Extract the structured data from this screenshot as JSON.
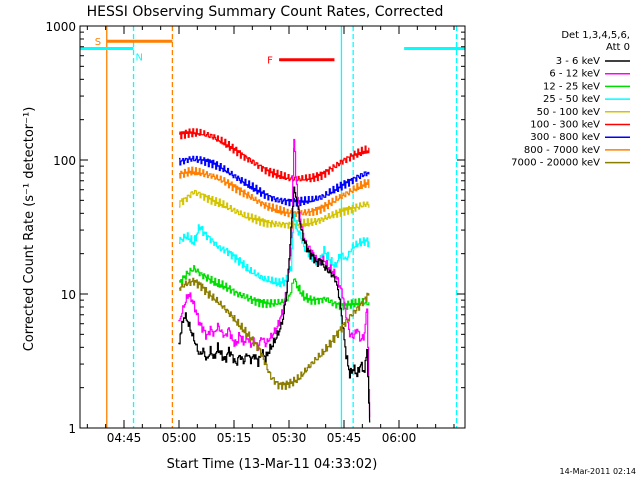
{
  "chart_data": {
    "type": "line",
    "title": "HESSI Observing Summary Count Rates, Corrected",
    "xlabel": "Start Time (13-Mar-11 04:33:02)",
    "ylabel": "Corrected Count Rate (s⁻¹ detector⁻¹)",
    "yscale": "log",
    "ylim": [
      1,
      1000
    ],
    "xlim_minutes_after_0433": [
      0,
      105
    ],
    "x_ticks": [
      {
        "label": "04:45",
        "minutes": 12
      },
      {
        "label": "05:00",
        "minutes": 27
      },
      {
        "label": "05:15",
        "minutes": 42
      },
      {
        "label": "05:30",
        "minutes": 57
      },
      {
        "label": "05:45",
        "minutes": 72
      },
      {
        "label": "06:00",
        "minutes": 87
      }
    ],
    "y_ticks": [
      {
        "label": "1",
        "value": 1
      },
      {
        "label": "10",
        "value": 10
      },
      {
        "label": "100",
        "value": 100
      },
      {
        "label": "1000",
        "value": 1000
      }
    ],
    "timestamp": "14-Mar-2011 02:14",
    "legend": {
      "placement": "right",
      "title_lines": [
        "Det 1,3,4,5,6,",
        "Att 0"
      ],
      "entries": [
        {
          "label": "3 - 6 keV",
          "color": "#000000"
        },
        {
          "label": "6 - 12 keV",
          "color": "#ff00ff"
        },
        {
          "label": "12 - 25 keV",
          "color": "#00dd00"
        },
        {
          "label": "25 - 50 keV",
          "color": "#00ffff"
        },
        {
          "label": "50 - 100 keV",
          "color": "#d4c400"
        },
        {
          "label": "100 - 300 keV",
          "color": "#ff0000"
        },
        {
          "label": "300 - 800 keV",
          "color": "#0000ff"
        },
        {
          "label": "800 - 7000 keV",
          "color": "#ff7f00"
        },
        {
          "label": "7000 - 20000 keV",
          "color": "#8b7d00"
        }
      ]
    },
    "flag_bars": [
      {
        "label": "S",
        "color": "#ff7f00",
        "start_min": 7.3,
        "end_min": 25.2,
        "level": 770
      },
      {
        "label": "N",
        "color": "#00ffff",
        "start_min": 0,
        "end_min": 14.6,
        "level": 680
      },
      {
        "label": "N",
        "color": "#00ffff",
        "start_min": 88.4,
        "end_min": 105,
        "level": 680
      },
      {
        "label": "F",
        "color": "#ff0000",
        "start_min": 54.3,
        "end_min": 69.4,
        "level": 560
      }
    ],
    "vertical_markers": [
      {
        "minutes": 7.3,
        "color": "#ff7f00",
        "style": "solid"
      },
      {
        "minutes": 14.6,
        "color": "#00ffff",
        "style": "dashed"
      },
      {
        "minutes": 25.2,
        "color": "#ff7f00",
        "style": "dashed"
      },
      {
        "minutes": 71.3,
        "color": "#00ffff",
        "style": "solid"
      },
      {
        "minutes": 74.5,
        "color": "#00ffff",
        "style": "dashed"
      },
      {
        "minutes": 102.7,
        "color": "#00ffff",
        "style": "dashed"
      }
    ],
    "series": [
      {
        "name": "100 - 300 keV",
        "color": "#ff0000",
        "points": [
          [
            27,
            155
          ],
          [
            30,
            160
          ],
          [
            33,
            158
          ],
          [
            36,
            150
          ],
          [
            39,
            135
          ],
          [
            42,
            120
          ],
          [
            45,
            105
          ],
          [
            48,
            93
          ],
          [
            51,
            83
          ],
          [
            54,
            77
          ],
          [
            57,
            73
          ],
          [
            60,
            72
          ],
          [
            63,
            73
          ],
          [
            66,
            78
          ],
          [
            69,
            88
          ],
          [
            72,
            100
          ],
          [
            75,
            110
          ],
          [
            78,
            118
          ],
          [
            78.8,
            115
          ]
        ]
      },
      {
        "name": "300 - 800 keV",
        "color": "#0000ff",
        "points": [
          [
            27,
            97
          ],
          [
            30,
            102
          ],
          [
            33,
            100
          ],
          [
            36,
            95
          ],
          [
            39,
            86
          ],
          [
            42,
            76
          ],
          [
            45,
            67
          ],
          [
            48,
            60
          ],
          [
            51,
            54
          ],
          [
            54,
            50
          ],
          [
            57,
            49
          ],
          [
            60,
            49
          ],
          [
            63,
            50
          ],
          [
            66,
            53
          ],
          [
            69,
            59
          ],
          [
            72,
            66
          ],
          [
            75,
            73
          ],
          [
            78,
            80
          ],
          [
            78.8,
            78
          ]
        ]
      },
      {
        "name": "800 - 7000 keV",
        "color": "#ff7f00",
        "points": [
          [
            27,
            78
          ],
          [
            30,
            82
          ],
          [
            33,
            80
          ],
          [
            36,
            76
          ],
          [
            39,
            70
          ],
          [
            42,
            63
          ],
          [
            45,
            56
          ],
          [
            48,
            50
          ],
          [
            51,
            45
          ],
          [
            54,
            42
          ],
          [
            57,
            40
          ],
          [
            60,
            40
          ],
          [
            63,
            41
          ],
          [
            66,
            44
          ],
          [
            69,
            49
          ],
          [
            72,
            55
          ],
          [
            75,
            61
          ],
          [
            78,
            67
          ],
          [
            78.8,
            66
          ]
        ]
      },
      {
        "name": "50 - 100 keV",
        "color": "#d4c400",
        "points": [
          [
            27,
            48
          ],
          [
            29,
            52
          ],
          [
            31,
            58
          ],
          [
            33,
            55
          ],
          [
            36,
            50
          ],
          [
            39,
            46
          ],
          [
            42,
            42
          ],
          [
            45,
            38
          ],
          [
            48,
            36
          ],
          [
            51,
            34
          ],
          [
            54,
            33
          ],
          [
            57,
            33
          ],
          [
            60,
            33
          ],
          [
            63,
            34
          ],
          [
            66,
            36
          ],
          [
            69,
            39
          ],
          [
            72,
            42
          ],
          [
            75,
            44
          ],
          [
            78,
            47
          ],
          [
            78.8,
            46
          ]
        ]
      },
      {
        "name": "25 - 50 keV",
        "color": "#00ffff",
        "points": [
          [
            27,
            25
          ],
          [
            29,
            27
          ],
          [
            31,
            24
          ],
          [
            32.5,
            32
          ],
          [
            34,
            28
          ],
          [
            36,
            25
          ],
          [
            38,
            22
          ],
          [
            40,
            21
          ],
          [
            42,
            19
          ],
          [
            44,
            17
          ],
          [
            46,
            15
          ],
          [
            48,
            14
          ],
          [
            50,
            13
          ],
          [
            52,
            12.5
          ],
          [
            54,
            12
          ],
          [
            56,
            12.5
          ],
          [
            57.5,
            16
          ],
          [
            58.3,
            40
          ],
          [
            59,
            30
          ],
          [
            60,
            28
          ],
          [
            61,
            22
          ],
          [
            63,
            19
          ],
          [
            65,
            17
          ],
          [
            66.5,
            21
          ],
          [
            68,
            18
          ],
          [
            69.5,
            16
          ],
          [
            71,
            20
          ],
          [
            72.5,
            18
          ],
          [
            74,
            22
          ],
          [
            76,
            24
          ],
          [
            78,
            25
          ],
          [
            78.8,
            24
          ]
        ]
      },
      {
        "name": "12 - 25 keV",
        "color": "#00dd00",
        "points": [
          [
            27,
            12
          ],
          [
            29,
            14
          ],
          [
            31,
            15.5
          ],
          [
            33,
            14
          ],
          [
            35,
            13
          ],
          [
            37,
            12
          ],
          [
            39,
            11.5
          ],
          [
            41,
            10.8
          ],
          [
            43,
            10
          ],
          [
            45,
            9.5
          ],
          [
            47,
            9
          ],
          [
            49,
            8.7
          ],
          [
            51,
            8.5
          ],
          [
            53,
            8.5
          ],
          [
            55,
            8.7
          ],
          [
            57,
            9.5
          ],
          [
            58.3,
            13
          ],
          [
            59.5,
            11
          ],
          [
            61,
            9.5
          ],
          [
            63,
            9
          ],
          [
            65,
            9
          ],
          [
            67,
            9.2
          ],
          [
            69,
            8.5
          ],
          [
            71,
            8.2
          ],
          [
            73,
            8.3
          ],
          [
            75,
            8.5
          ],
          [
            77,
            8.7
          ],
          [
            78.8,
            8.5
          ]
        ]
      },
      {
        "name": "6 - 12 keV",
        "color": "#ff00ff",
        "points": [
          [
            26.8,
            6
          ],
          [
            27.5,
            7
          ],
          [
            28.5,
            8.5
          ],
          [
            29.5,
            10
          ],
          [
            30.5,
            9
          ],
          [
            31.5,
            7.5
          ],
          [
            32.5,
            6
          ],
          [
            33.5,
            5.5
          ],
          [
            34.5,
            4.8
          ],
          [
            35.5,
            5.5
          ],
          [
            36.5,
            5
          ],
          [
            37.5,
            5.8
          ],
          [
            38.5,
            5.2
          ],
          [
            39.5,
            4.8
          ],
          [
            40.5,
            5.5
          ],
          [
            41.5,
            4.5
          ],
          [
            42.5,
            4.2
          ],
          [
            43.5,
            5
          ],
          [
            44.5,
            4.3
          ],
          [
            45.5,
            4.8
          ],
          [
            46.5,
            4.2
          ],
          [
            47.5,
            4.5
          ],
          [
            48.5,
            4
          ],
          [
            49.5,
            4.8
          ],
          [
            50.5,
            4.2
          ],
          [
            51.5,
            4.6
          ],
          [
            52.5,
            5
          ],
          [
            53.5,
            5.5
          ],
          [
            54.5,
            6.5
          ],
          [
            55.5,
            8
          ],
          [
            56.5,
            12
          ],
          [
            57.5,
            25
          ],
          [
            58.3,
            145
          ],
          [
            58.8,
            80
          ],
          [
            59.5,
            45
          ],
          [
            60.5,
            30
          ],
          [
            61.5,
            24
          ],
          [
            62.5,
            22
          ],
          [
            63.5,
            20
          ],
          [
            64.5,
            18
          ],
          [
            65.5,
            17
          ],
          [
            66.5,
            18
          ],
          [
            67.5,
            16
          ],
          [
            68.5,
            15
          ],
          [
            69.5,
            14
          ],
          [
            70.5,
            12
          ],
          [
            71.5,
            10
          ],
          [
            72.5,
            7
          ],
          [
            73.5,
            5
          ],
          [
            74.5,
            4.8
          ],
          [
            75.5,
            5.5
          ],
          [
            76.5,
            4.5
          ],
          [
            77.5,
            5
          ],
          [
            78.2,
            8
          ],
          [
            78.7,
            2
          ],
          [
            79,
            1.2
          ]
        ]
      },
      {
        "name": "3 - 6 keV",
        "color": "#000000",
        "points": [
          [
            26.8,
            4
          ],
          [
            27.5,
            5.5
          ],
          [
            28.5,
            7
          ],
          [
            29.5,
            6
          ],
          [
            30.5,
            5
          ],
          [
            31.5,
            4.2
          ],
          [
            32.5,
            3.5
          ],
          [
            33.5,
            3.8
          ],
          [
            34.5,
            3.2
          ],
          [
            35.5,
            3.8
          ],
          [
            36.5,
            3.3
          ],
          [
            37.5,
            4
          ],
          [
            38.5,
            3.5
          ],
          [
            39.5,
            3.2
          ],
          [
            40.5,
            3.8
          ],
          [
            41.5,
            3.4
          ],
          [
            42.5,
            3
          ],
          [
            43.5,
            3.5
          ],
          [
            44.5,
            3.1
          ],
          [
            45.5,
            3.6
          ],
          [
            46.5,
            3.2
          ],
          [
            47.5,
            3.5
          ],
          [
            48.5,
            3.1
          ],
          [
            49.5,
            3.7
          ],
          [
            50.5,
            3.3
          ],
          [
            51.5,
            3.8
          ],
          [
            52.5,
            4.2
          ],
          [
            53.5,
            4.8
          ],
          [
            54.5,
            5.5
          ],
          [
            55.5,
            7
          ],
          [
            56.5,
            12
          ],
          [
            57.5,
            30
          ],
          [
            58.3,
            60
          ],
          [
            58.8,
            55
          ],
          [
            59.5,
            40
          ],
          [
            60.5,
            28
          ],
          [
            61.5,
            23
          ],
          [
            62.5,
            20
          ],
          [
            63.5,
            19
          ],
          [
            64.5,
            17
          ],
          [
            65.5,
            18
          ],
          [
            66.5,
            16
          ],
          [
            67.5,
            15
          ],
          [
            68.5,
            14
          ],
          [
            69.5,
            13
          ],
          [
            70.5,
            10
          ],
          [
            71.5,
            6
          ],
          [
            72.5,
            3.5
          ],
          [
            73.5,
            2.5
          ],
          [
            74.5,
            2.8
          ],
          [
            75.5,
            2.5
          ],
          [
            76.5,
            3
          ],
          [
            77.5,
            2.6
          ],
          [
            78.2,
            4
          ],
          [
            78.7,
            1.5
          ],
          [
            79,
            1.1
          ]
        ]
      },
      {
        "name": "7000 - 20000 keV",
        "color": "#8b7d00",
        "points": [
          [
            27,
            11
          ],
          [
            29,
            12
          ],
          [
            31,
            12.5
          ],
          [
            33,
            11.5
          ],
          [
            35,
            10
          ],
          [
            37,
            9
          ],
          [
            39,
            8
          ],
          [
            41,
            7
          ],
          [
            43,
            6
          ],
          [
            45,
            5.2
          ],
          [
            47,
            4.5
          ],
          [
            49,
            3.8
          ],
          [
            50.5,
            3
          ],
          [
            52,
            2.4
          ],
          [
            54,
            2.1
          ],
          [
            56,
            2.1
          ],
          [
            58,
            2.2
          ],
          [
            60,
            2.4
          ],
          [
            62,
            2.8
          ],
          [
            64,
            3.2
          ],
          [
            66,
            3.6
          ],
          [
            68,
            4.2
          ],
          [
            70,
            5
          ],
          [
            72,
            6
          ],
          [
            74,
            7
          ],
          [
            76,
            8
          ],
          [
            78,
            9.5
          ],
          [
            78.8,
            10
          ]
        ]
      }
    ]
  }
}
